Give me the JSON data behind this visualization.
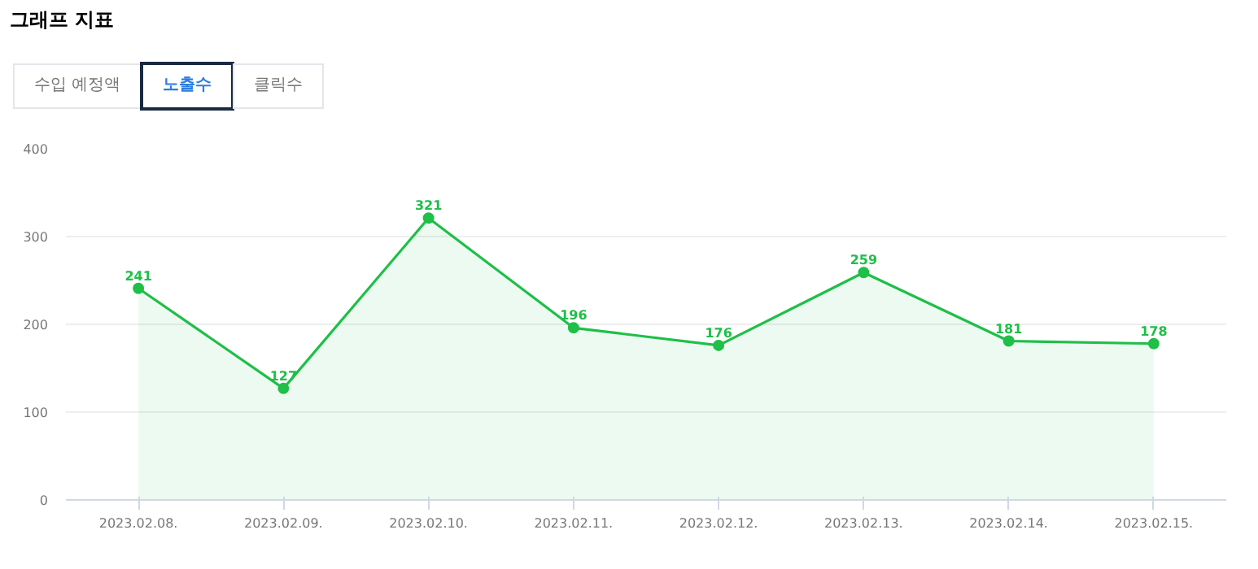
{
  "chart_data": {
    "type": "area",
    "title": "그래프 지표",
    "annotations": [
      "수입 예정액",
      "노출수",
      "클릭수"
    ],
    "categories": [
      "2023.02.08.",
      "2023.02.09.",
      "2023.02.10.",
      "2023.02.11.",
      "2023.02.12.",
      "2023.02.13.",
      "2023.02.14.",
      "2023.02.15."
    ],
    "series": [
      {
        "color": "#1fbf48",
        "values": [
          241,
          127,
          321,
          196,
          176,
          259,
          181,
          178
        ]
      }
    ],
    "ylim": [
      0,
      400
    ],
    "yticks": [
      0,
      100,
      200,
      300,
      400
    ],
    "grid": "y",
    "marker": "circle",
    "data_labels": true
  }
}
